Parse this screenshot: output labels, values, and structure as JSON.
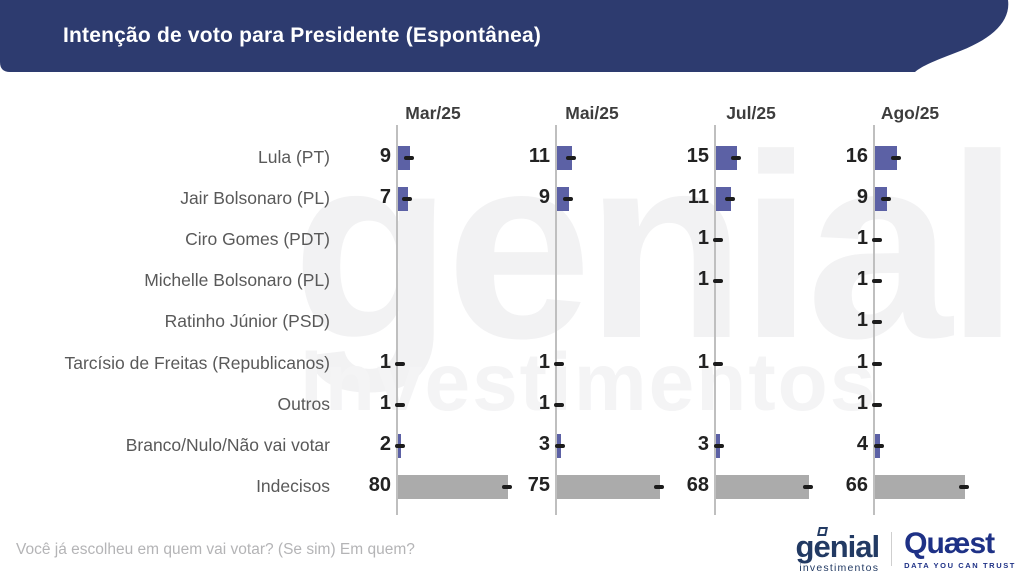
{
  "header": {
    "title": "Intenção de voto para Presidente (Espontânea)"
  },
  "colors": {
    "banner": "#2d3b6f",
    "bar_purple": "#5c61a5",
    "bar_gray": "#ababab",
    "axis": "#bfbfbf",
    "dash": "#1c1c1c"
  },
  "chart_data": {
    "type": "bar",
    "orientation": "horizontal",
    "title": "Intenção de voto para Presidente (Espontânea)",
    "categories": [
      "Mar/25",
      "Mai/25",
      "Jul/25",
      "Ago/25"
    ],
    "series": [
      {
        "name": "Lula (PT)",
        "values": [
          9,
          11,
          15,
          16
        ],
        "color_key": "bar_purple"
      },
      {
        "name": "Jair Bolsonaro (PL)",
        "values": [
          7,
          9,
          11,
          9
        ],
        "color_key": "bar_purple"
      },
      {
        "name": "Ciro Gomes (PDT)",
        "values": [
          null,
          null,
          1,
          1
        ],
        "color_key": "bar_purple"
      },
      {
        "name": "Michelle Bolsonaro (PL)",
        "values": [
          null,
          null,
          1,
          1
        ],
        "color_key": "bar_purple"
      },
      {
        "name": "Ratinho Júnior (PSD)",
        "values": [
          null,
          null,
          null,
          1
        ],
        "color_key": "bar_purple"
      },
      {
        "name": "Tarcísio de Freitas (Republicanos)",
        "values": [
          1,
          1,
          1,
          1
        ],
        "color_key": "bar_purple"
      },
      {
        "name": "Outros",
        "values": [
          1,
          1,
          null,
          1
        ],
        "color_key": "bar_purple"
      },
      {
        "name": "Branco/Nulo/Não vai votar",
        "values": [
          2,
          3,
          3,
          4
        ],
        "color_key": "bar_purple"
      },
      {
        "name": "Indecisos",
        "values": [
          80,
          75,
          68,
          66
        ],
        "color_key": "bar_gray"
      }
    ],
    "value_range": [
      0,
      100
    ],
    "legend": "none",
    "grid": "off"
  },
  "footer": {
    "question": "Você já escolheu em quem vai votar? (Se sim) Em quem?"
  },
  "watermark": {
    "line1": "genial",
    "line2": "investimentos"
  },
  "branding": {
    "genial_name": "genial",
    "genial_sub": "investimentos",
    "quaest_name": "Quæst",
    "quaest_tagline": "DATA YOU CAN TRUST"
  }
}
